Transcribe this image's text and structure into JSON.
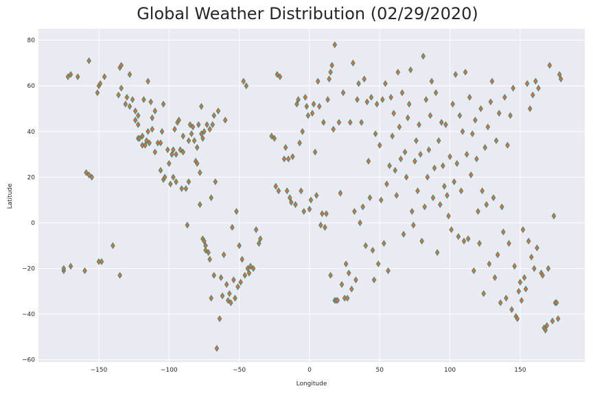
{
  "chart_data": {
    "type": "scatter",
    "title": "Global Weather Distribution (02/29/2020)",
    "xlabel": "Longitude",
    "ylabel": "Latitude",
    "xlim": [
      -193,
      196
    ],
    "ylim": [
      -61,
      85
    ],
    "xticks": [
      -150,
      -100,
      -50,
      0,
      50,
      100,
      150
    ],
    "yticks": [
      -60,
      -40,
      -20,
      0,
      20,
      40,
      60,
      80
    ],
    "grid": true,
    "marker": "diamond",
    "colors": {
      "background": "#eaeaf2",
      "marker_fill": "#e0702e",
      "marker_edge": "#1f8a8a",
      "grid": "#ffffff"
    },
    "points": [
      [
        -175,
        -21
      ],
      [
        -175,
        -20
      ],
      [
        -172,
        64
      ],
      [
        -170,
        -19
      ],
      [
        -170,
        65
      ],
      [
        -165,
        64
      ],
      [
        -160,
        -21
      ],
      [
        -159,
        22
      ],
      [
        -157,
        71
      ],
      [
        -157,
        21
      ],
      [
        -155,
        20
      ],
      [
        -151,
        57
      ],
      [
        -150,
        -17
      ],
      [
        -150,
        60
      ],
      [
        -149,
        61
      ],
      [
        -148,
        -17
      ],
      [
        -146,
        64
      ],
      [
        -140,
        -10
      ],
      [
        -136,
        56
      ],
      [
        -135,
        -23
      ],
      [
        -135,
        68
      ],
      [
        -134,
        69
      ],
      [
        -134,
        59
      ],
      [
        -131,
        52
      ],
      [
        -130,
        55
      ],
      [
        -128,
        65
      ],
      [
        -128,
        51
      ],
      [
        -126,
        54
      ],
      [
        -124,
        49
      ],
      [
        -124,
        45
      ],
      [
        -122,
        43
      ],
      [
        -122,
        37
      ],
      [
        -122,
        47
      ],
      [
        -121,
        37
      ],
      [
        -119,
        34
      ],
      [
        -119,
        38
      ],
      [
        -118,
        54
      ],
      [
        -117,
        34
      ],
      [
        -116,
        36
      ],
      [
        -115,
        62
      ],
      [
        -115,
        40
      ],
      [
        -114,
        35
      ],
      [
        -113,
        53
      ],
      [
        -112,
        46
      ],
      [
        -112,
        41
      ],
      [
        -110,
        31
      ],
      [
        -110,
        49
      ],
      [
        -108,
        35
      ],
      [
        -106,
        23
      ],
      [
        -106,
        35
      ],
      [
        -105,
        40
      ],
      [
        -104,
        52
      ],
      [
        -104,
        19
      ],
      [
        -103,
        20
      ],
      [
        -101,
        32
      ],
      [
        -100,
        26
      ],
      [
        -99,
        17
      ],
      [
        -98,
        30
      ],
      [
        -97,
        32
      ],
      [
        -97,
        20
      ],
      [
        -96,
        41
      ],
      [
        -95,
        18
      ],
      [
        -95,
        30
      ],
      [
        -94,
        44
      ],
      [
        -93,
        45
      ],
      [
        -92,
        32
      ],
      [
        -91,
        15
      ],
      [
        -90,
        38
      ],
      [
        -90,
        31
      ],
      [
        -88,
        15
      ],
      [
        -87,
        -1
      ],
      [
        -86,
        36
      ],
      [
        -86,
        18
      ],
      [
        -85,
        43
      ],
      [
        -84,
        39
      ],
      [
        -83,
        42
      ],
      [
        -82,
        36
      ],
      [
        -81,
        27
      ],
      [
        -80,
        26
      ],
      [
        -80,
        33
      ],
      [
        -79,
        43
      ],
      [
        -78,
        8
      ],
      [
        -78,
        22
      ],
      [
        -77,
        51
      ],
      [
        -77,
        39
      ],
      [
        -76,
        -7
      ],
      [
        -76,
        37
      ],
      [
        -75,
        -8
      ],
      [
        -75,
        40
      ],
      [
        -74,
        -10
      ],
      [
        -74,
        -12
      ],
      [
        -73,
        43
      ],
      [
        -72,
        -13
      ],
      [
        -71,
        -16
      ],
      [
        -71,
        41
      ],
      [
        -70,
        -33
      ],
      [
        -70,
        11
      ],
      [
        -69,
        43
      ],
      [
        -68,
        -23
      ],
      [
        -68,
        47
      ],
      [
        -67,
        18
      ],
      [
        -66,
        -55
      ],
      [
        -65,
        49
      ],
      [
        -64,
        -42
      ],
      [
        -63,
        -24
      ],
      [
        -62,
        -32
      ],
      [
        -61,
        -14
      ],
      [
        -60,
        45
      ],
      [
        -59,
        -27
      ],
      [
        -58,
        -34
      ],
      [
        -57,
        -31
      ],
      [
        -56,
        -35
      ],
      [
        -55,
        -2
      ],
      [
        -54,
        -25
      ],
      [
        -53,
        -33
      ],
      [
        -52,
        5
      ],
      [
        -51,
        -28
      ],
      [
        -50,
        -10
      ],
      [
        -49,
        -26
      ],
      [
        -48,
        -16
      ],
      [
        -47,
        62
      ],
      [
        -46,
        -23
      ],
      [
        -45,
        60
      ],
      [
        -44,
        -20
      ],
      [
        -43,
        -22
      ],
      [
        -42,
        -19
      ],
      [
        -40,
        -20
      ],
      [
        -38,
        -3
      ],
      [
        -36,
        -9
      ],
      [
        -35,
        -7
      ],
      [
        -27,
        38
      ],
      [
        -25,
        37
      ],
      [
        -24,
        16
      ],
      [
        -23,
        65
      ],
      [
        -22,
        14
      ],
      [
        -21,
        64
      ],
      [
        -18,
        28
      ],
      [
        -17,
        33
      ],
      [
        -16,
        14
      ],
      [
        -15,
        28
      ],
      [
        -14,
        11
      ],
      [
        -13,
        9
      ],
      [
        -12,
        29
      ],
      [
        -10,
        8
      ],
      [
        -9,
        52
      ],
      [
        -8,
        54
      ],
      [
        -7,
        35
      ],
      [
        -6,
        14
      ],
      [
        -5,
        40
      ],
      [
        -4,
        5
      ],
      [
        -3,
        55
      ],
      [
        -2,
        51
      ],
      [
        -1,
        47
      ],
      [
        0,
        6
      ],
      [
        1,
        10
      ],
      [
        2,
        48
      ],
      [
        3,
        52
      ],
      [
        4,
        31
      ],
      [
        5,
        12
      ],
      [
        6,
        62
      ],
      [
        7,
        51
      ],
      [
        8,
        -1
      ],
      [
        9,
        4
      ],
      [
        10,
        44
      ],
      [
        11,
        -2
      ],
      [
        12,
        4
      ],
      [
        13,
        54
      ],
      [
        14,
        63
      ],
      [
        15,
        -23
      ],
      [
        15,
        66
      ],
      [
        16,
        69
      ],
      [
        17,
        41
      ],
      [
        18,
        -34
      ],
      [
        18,
        78
      ],
      [
        19,
        -34
      ],
      [
        20,
        -34
      ],
      [
        21,
        44
      ],
      [
        22,
        13
      ],
      [
        23,
        -27
      ],
      [
        24,
        57
      ],
      [
        25,
        -33
      ],
      [
        26,
        -18
      ],
      [
        27,
        -33
      ],
      [
        28,
        -22
      ],
      [
        29,
        44
      ],
      [
        30,
        -29
      ],
      [
        31,
        70
      ],
      [
        32,
        5
      ],
      [
        33,
        -25
      ],
      [
        34,
        54
      ],
      [
        35,
        61
      ],
      [
        36,
        0
      ],
      [
        37,
        44
      ],
      [
        38,
        7
      ],
      [
        39,
        63
      ],
      [
        40,
        -10
      ],
      [
        41,
        53
      ],
      [
        42,
        27
      ],
      [
        43,
        11
      ],
      [
        44,
        55
      ],
      [
        45,
        -12
      ],
      [
        46,
        -25
      ],
      [
        47,
        39
      ],
      [
        48,
        52
      ],
      [
        49,
        -18
      ],
      [
        50,
        34
      ],
      [
        51,
        10
      ],
      [
        52,
        54
      ],
      [
        53,
        -9
      ],
      [
        54,
        61
      ],
      [
        55,
        17
      ],
      [
        56,
        -21
      ],
      [
        57,
        25
      ],
      [
        58,
        55
      ],
      [
        59,
        38
      ],
      [
        60,
        48
      ],
      [
        61,
        23
      ],
      [
        62,
        12
      ],
      [
        63,
        66
      ],
      [
        64,
        42
      ],
      [
        65,
        28
      ],
      [
        66,
        57
      ],
      [
        67,
        -5
      ],
      [
        68,
        31
      ],
      [
        69,
        20
      ],
      [
        70,
        46
      ],
      [
        71,
        52
      ],
      [
        72,
        67
      ],
      [
        73,
        5
      ],
      [
        74,
        -1
      ],
      [
        75,
        27
      ],
      [
        76,
        36
      ],
      [
        77,
        14
      ],
      [
        78,
        43
      ],
      [
        79,
        30
      ],
      [
        80,
        -8
      ],
      [
        81,
        73
      ],
      [
        82,
        7
      ],
      [
        83,
        54
      ],
      [
        84,
        20
      ],
      [
        85,
        32
      ],
      [
        86,
        47
      ],
      [
        87,
        62
      ],
      [
        88,
        11
      ],
      [
        89,
        24
      ],
      [
        90,
        57
      ],
      [
        91,
        -13
      ],
      [
        92,
        36
      ],
      [
        93,
        8
      ],
      [
        94,
        44
      ],
      [
        95,
        25
      ],
      [
        96,
        16
      ],
      [
        97,
        43
      ],
      [
        98,
        12
      ],
      [
        99,
        3
      ],
      [
        100,
        29
      ],
      [
        101,
        -3
      ],
      [
        102,
        52
      ],
      [
        103,
        18
      ],
      [
        104,
        65
      ],
      [
        105,
        26
      ],
      [
        106,
        -6
      ],
      [
        107,
        47
      ],
      [
        108,
        14
      ],
      [
        109,
        40
      ],
      [
        110,
        -8
      ],
      [
        111,
        66
      ],
      [
        112,
        30
      ],
      [
        113,
        -7
      ],
      [
        114,
        55
      ],
      [
        115,
        21
      ],
      [
        116,
        39
      ],
      [
        117,
        -21
      ],
      [
        118,
        45
      ],
      [
        119,
        28
      ],
      [
        120,
        5
      ],
      [
        121,
        -9
      ],
      [
        122,
        50
      ],
      [
        123,
        14
      ],
      [
        124,
        -31
      ],
      [
        125,
        33
      ],
      [
        126,
        8
      ],
      [
        127,
        42
      ],
      [
        128,
        -18
      ],
      [
        129,
        53
      ],
      [
        130,
        62
      ],
      [
        131,
        11
      ],
      [
        132,
        -24
      ],
      [
        133,
        36
      ],
      [
        134,
        -14
      ],
      [
        135,
        48
      ],
      [
        136,
        -35
      ],
      [
        137,
        7
      ],
      [
        138,
        -4
      ],
      [
        139,
        55
      ],
      [
        140,
        -33
      ],
      [
        141,
        34
      ],
      [
        142,
        -9
      ],
      [
        143,
        47
      ],
      [
        144,
        -38
      ],
      [
        145,
        59
      ],
      [
        146,
        -19
      ],
      [
        147,
        -41
      ],
      [
        148,
        -42
      ],
      [
        149,
        -30
      ],
      [
        150,
        -26
      ],
      [
        151,
        -34
      ],
      [
        152,
        -3
      ],
      [
        153,
        -24
      ],
      [
        154,
        -29
      ],
      [
        155,
        61
      ],
      [
        156,
        -8
      ],
      [
        157,
        50
      ],
      [
        158,
        -15
      ],
      [
        159,
        56
      ],
      [
        160,
        -20
      ],
      [
        161,
        62
      ],
      [
        162,
        -11
      ],
      [
        163,
        59
      ],
      [
        165,
        -22
      ],
      [
        166,
        -23
      ],
      [
        167,
        -46
      ],
      [
        168,
        -47
      ],
      [
        169,
        -45
      ],
      [
        170,
        -20
      ],
      [
        171,
        69
      ],
      [
        173,
        -43
      ],
      [
        174,
        3
      ],
      [
        175,
        -35
      ],
      [
        176,
        -35
      ],
      [
        177,
        -42
      ],
      [
        178,
        65
      ],
      [
        179,
        63
      ]
    ]
  }
}
